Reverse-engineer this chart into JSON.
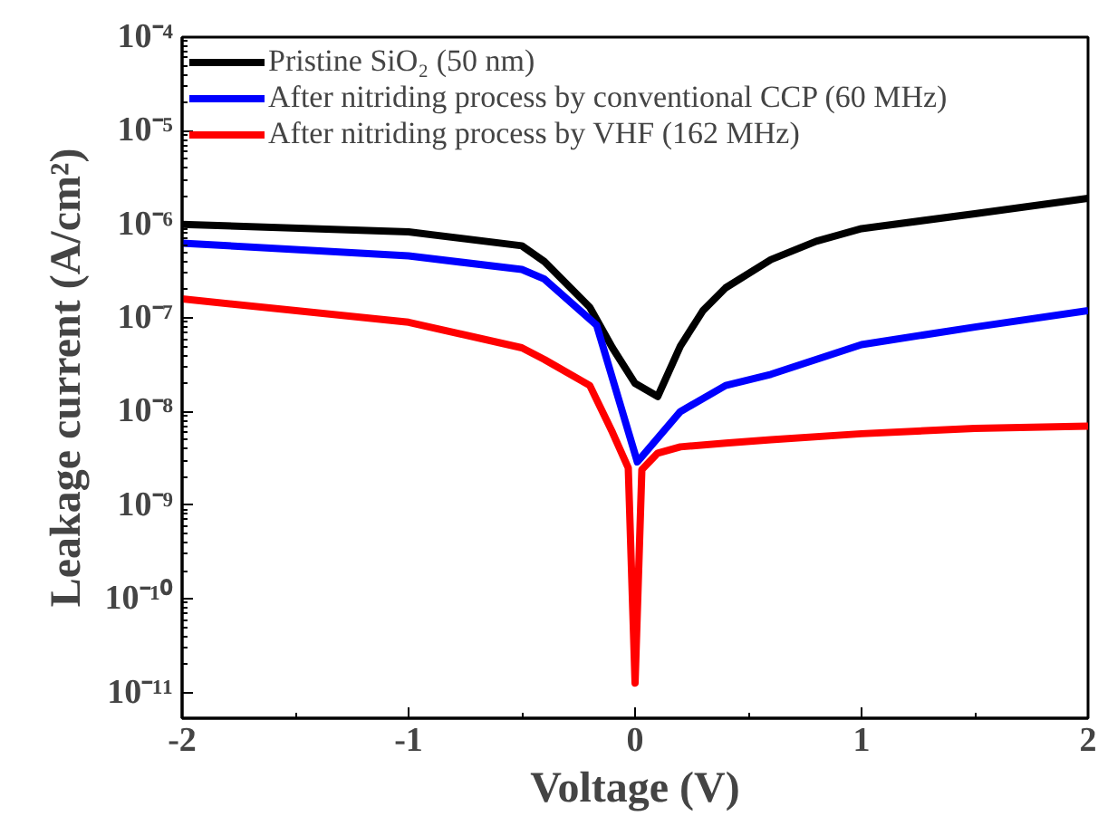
{
  "chart_data": {
    "type": "line",
    "xlabel": "Voltage (V)",
    "ylabel": "Leakage current (A/cm²)",
    "log": "y",
    "grid": false,
    "legend": "top left",
    "marker": "none",
    "line_style": "solid",
    "xlim": [
      -2,
      2
    ],
    "xticks": [
      -2,
      -1,
      0,
      1,
      2
    ],
    "ylim": [
      5.3e-12,
      0.0001
    ],
    "yticks": [
      {
        "value": 1e-11,
        "label": "10⁻¹¹"
      },
      {
        "value": 1e-10,
        "label": "10⁻¹⁰"
      },
      {
        "value": 1e-09,
        "label": "10⁻⁹"
      },
      {
        "value": 1e-08,
        "label": "10⁻⁸"
      },
      {
        "value": 1e-07,
        "label": "10⁻⁷"
      },
      {
        "value": 1e-06,
        "label": "10⁻⁶"
      },
      {
        "value": 1e-05,
        "label": "10⁻⁵"
      },
      {
        "value": 0.0001,
        "label": "10⁻⁴"
      }
    ],
    "series": [
      {
        "name": "Pristine SiO₂ (50 nm)",
        "color": "#000000",
        "x": [
          -2,
          -1,
          -0.5,
          -0.4,
          -0.2,
          -0.1,
          0,
          0.1,
          0.2,
          0.3,
          0.4,
          0.6,
          0.8,
          1.0,
          1.5,
          2
        ],
        "values": [
          1e-06,
          8.3e-07,
          5.9e-07,
          4e-07,
          1.3e-07,
          4.8e-08,
          2e-08,
          1.45e-08,
          5e-08,
          1.2e-07,
          2.1e-07,
          4.2e-07,
          6.6e-07,
          9e-07,
          1.3e-06,
          1.9e-06
        ]
      },
      {
        "name": "After nitriding process by conventional CCP (60 MHz)",
        "color": "#0000ff",
        "x": [
          -2,
          -1,
          -0.5,
          -0.4,
          -0.17,
          0.01,
          0.2,
          0.4,
          0.6,
          1.0,
          1.5,
          2
        ],
        "values": [
          6.3e-07,
          4.6e-07,
          3.3e-07,
          2.6e-07,
          8.4e-08,
          2.9e-09,
          1e-08,
          1.9e-08,
          2.5e-08,
          5.2e-08,
          8e-08,
          1.2e-07
        ]
      },
      {
        "name": "After nitriding process by VHF (162 MHz)",
        "color": "#ff0000",
        "x": [
          -2,
          -1,
          -0.5,
          -0.4,
          -0.2,
          -0.1,
          -0.03,
          0,
          0.03,
          0.1,
          0.2,
          0.4,
          0.6,
          1.0,
          1.5,
          2
        ],
        "values": [
          1.6e-07,
          9e-08,
          4.8e-08,
          3.6e-08,
          1.9e-08,
          6e-09,
          2.5e-09,
          1.26e-11,
          2.4e-09,
          3.6e-09,
          4.2e-09,
          4.6e-09,
          5e-09,
          5.8e-09,
          6.6e-09,
          7e-09
        ]
      }
    ]
  }
}
